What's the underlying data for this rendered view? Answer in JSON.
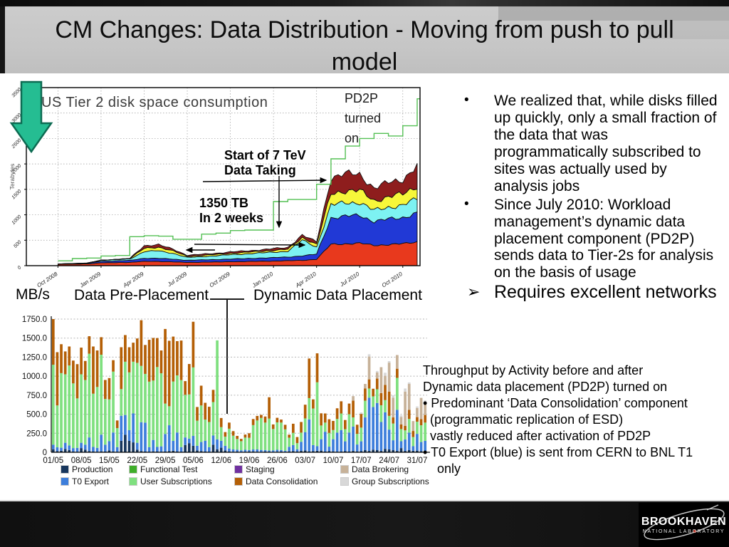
{
  "slide": {
    "title": "CM Changes: Data Distribution - Moving from push to pull model"
  },
  "bullets": [
    {
      "marker": "•",
      "text": "We realized that, while disks filled up quickly, only a small fraction of the data that was programmatically subscribed to sites was actually used by analysis jobs"
    },
    {
      "marker": "•",
      "text": "Since July 2010: Workload management’s dynamic data placement component (PD2P) sends data to Tier-2s for analysis on the basis of usage"
    },
    {
      "marker": "➢",
      "text": "Requires excellent networks"
    }
  ],
  "throughput_note": {
    "lines": [
      "Throughput by Activity before and after",
      "Dynamic data placement (PD2P) turned on",
      "• Predominant ‘Data Consolidation’ component",
      "  (programmatic replication of ESD)",
      "  vastly reduced after activation of PD2P",
      "• T0 Export (blue) is sent from CERN to BNL T1",
      "    only"
    ]
  },
  "logo": {
    "line1": "BROOKHAVEN",
    "line2": "NATIONAL LABORATORY"
  },
  "chart_data": [
    {
      "type": "area",
      "stacked": true,
      "title": "US Tier 2 disk space consumption",
      "ylabel": "Terabytes",
      "ylim": [
        0,
        3500
      ],
      "y_ticks": [
        0,
        500,
        1000,
        1500,
        2000,
        2500,
        3000,
        3500
      ],
      "grid": "dotted",
      "x": [
        "Oct 2008",
        "Nov 2008",
        "Dec 2008",
        "Jan 2009",
        "Feb 2009",
        "Mar 2009",
        "Apr 2009",
        "May 2009",
        "Jun 2009",
        "Jul 2009",
        "Aug 2009",
        "Sep 2009",
        "Oct 2009",
        "Nov 2009",
        "Dec 2009",
        "Jan 2010",
        "Feb 2010",
        "Mar 2010",
        "Apr 2010",
        "May 2010",
        "Jun 2010",
        "Jul 2010",
        "Aug 2010",
        "Sep 2010",
        "Oct 2010",
        "Nov 2010"
      ],
      "x_tick_labels": [
        "Oct 2008",
        "Jan 2009",
        "Apr 2009",
        "Jul 2009",
        "Oct 2009",
        "Jan 2010",
        "Apr 2010",
        "Jul 2010",
        "Oct 2010"
      ],
      "x_tick_indices": [
        0,
        3,
        6,
        9,
        12,
        15,
        18,
        21,
        24
      ],
      "series": [
        {
          "name": "band-red",
          "color": "#e8391d",
          "values": [
            25,
            30,
            35,
            55,
            60,
            65,
            85,
            85,
            75,
            65,
            68,
            72,
            78,
            82,
            88,
            92,
            98,
            105,
            125,
            420,
            430,
            440,
            400,
            415,
            430,
            470
          ]
        },
        {
          "name": "band-blue",
          "color": "#2139d6",
          "values": [
            5,
            7,
            9,
            30,
            34,
            38,
            60,
            60,
            52,
            42,
            45,
            48,
            52,
            56,
            62,
            66,
            72,
            88,
            100,
            520,
            540,
            550,
            470,
            500,
            515,
            570
          ]
        },
        {
          "name": "band-cyan",
          "color": "#7df2f2",
          "values": [
            4,
            5,
            7,
            22,
            26,
            30,
            130,
            150,
            115,
            55,
            65,
            75,
            85,
            92,
            98,
            108,
            112,
            310,
            140,
            250,
            265,
            255,
            215,
            235,
            245,
            275
          ]
        },
        {
          "name": "band-yellow",
          "color": "#f7f73a",
          "values": [
            0,
            0,
            0,
            0,
            0,
            6,
            65,
            70,
            48,
            22,
            24,
            26,
            28,
            30,
            33,
            36,
            40,
            52,
            55,
            225,
            240,
            230,
            195,
            205,
            215,
            255
          ]
        },
        {
          "name": "band-maroon",
          "color": "#8e1d1d",
          "values": [
            0,
            0,
            0,
            0,
            0,
            5,
            55,
            45,
            38,
            20,
            22,
            24,
            26,
            28,
            30,
            32,
            36,
            48,
            45,
            315,
            330,
            320,
            245,
            275,
            290,
            395
          ]
        }
      ],
      "capacity_line": {
        "name": "green-line",
        "color": "#54c054",
        "values": [
          95,
          140,
          150,
          190,
          200,
          570,
          590,
          580,
          520,
          520,
          620,
          640,
          690,
          700,
          700,
          1260,
          1300,
          1300,
          1600,
          2100,
          2350,
          2500,
          2600,
          2550,
          2750,
          3280
        ]
      },
      "annotations": {
        "pd2p": "PD2P\nturned\non",
        "tev_start": "Start of 7 TeV\nData Taking",
        "tb_2weeks": "1350 TB\nIn 2 weeks"
      }
    },
    {
      "type": "bar",
      "stacked": true,
      "ylabel": "MB/s",
      "ylim": [
        0,
        1750
      ],
      "y_ticks": {
        "values": [
          0,
          250,
          500,
          750,
          1000,
          1250,
          1500,
          1750
        ],
        "labels": [
          "0",
          "250.0",
          "500.0",
          "750.0",
          "1000.0",
          "1250.0",
          "1500.0",
          "1750.0"
        ]
      },
      "region_labels": {
        "left": "Data Pre-Placement",
        "right": "Dynamic Data Placement"
      },
      "n_bars": 94,
      "x_week_labels": [
        "01/05",
        "08/05",
        "15/05",
        "22/05",
        "29/05",
        "05/06",
        "12/06",
        "19/06",
        "26/06",
        "03/07",
        "10/07",
        "17/07",
        "24/07",
        "31/07"
      ],
      "stack_order": [
        "production",
        "t0_export",
        "user_subscriptions",
        "functional_test",
        "staging",
        "data_consolidation",
        "data_brokering",
        "group_subscriptions"
      ],
      "legend_order": [
        "production",
        "functional_test",
        "staging",
        "data_brokering",
        "t0_export",
        "user_subscriptions",
        "data_consolidation",
        "group_subscriptions"
      ],
      "series": [
        {
          "key": "production",
          "label": "Production",
          "color": "#17365d",
          "values": [
            40,
            15,
            20,
            45,
            30,
            10,
            8,
            55,
            35,
            15,
            10,
            8,
            12,
            10,
            25,
            10,
            8,
            150,
            230,
            150,
            130,
            35,
            15,
            10,
            8,
            12,
            10,
            8,
            10,
            15,
            20,
            10,
            8,
            95,
            120,
            85,
            25,
            15,
            10,
            8,
            100,
            40,
            60,
            25,
            10,
            8,
            10,
            6,
            8,
            10,
            12,
            8,
            6,
            10,
            8,
            6,
            8,
            10,
            6,
            12,
            15,
            10,
            18,
            25,
            12,
            15,
            20,
            22,
            10,
            14,
            12,
            8,
            10,
            14,
            10,
            18,
            12,
            14,
            28,
            18,
            35,
            28,
            18,
            45,
            38,
            28,
            18,
            55,
            18,
            28,
            20,
            22,
            15,
            10
          ]
        },
        {
          "key": "t0_export",
          "label": "T0 Export",
          "color": "#3d7edb",
          "values": [
            60,
            50,
            40,
            80,
            60,
            45,
            50,
            70,
            65,
            180,
            60,
            50,
            220,
            90,
            120,
            250,
            60,
            330,
            260,
            140,
            380,
            90,
            380,
            380,
            60,
            150,
            60,
            70,
            230,
            340,
            130,
            250,
            60,
            100,
            60,
            130,
            60,
            120,
            140,
            60,
            120,
            130,
            90,
            60,
            40,
            30,
            25,
            20,
            25,
            20,
            25,
            30,
            25,
            20,
            15,
            20,
            25,
            20,
            15,
            60,
            80,
            30,
            120,
            240,
            420,
            80,
            60,
            150,
            260,
            60,
            160,
            250,
            280,
            130,
            250,
            320,
            90,
            130,
            430,
            700,
            560,
            620,
            380,
            480,
            260,
            130,
            540,
            90,
            150,
            230,
            60,
            220,
            120,
            140
          ]
        },
        {
          "key": "functional_test",
          "label": "Functional Test",
          "color": "#3fae2a",
          "values": []
        },
        {
          "key": "user_subscriptions",
          "label": "User Subscriptions",
          "color": "#7fe07f",
          "values": [
            1050,
            550,
            980,
            900,
            1050,
            850,
            650,
            900,
            850,
            1100,
            700,
            800,
            1050,
            600,
            550,
            800,
            250,
            350,
            700,
            760,
            680,
            1050,
            740,
            640,
            860,
            780,
            1050,
            960,
            400,
            250,
            780,
            750,
            880,
            560,
            580,
            900,
            330,
            480,
            280,
            330,
            440,
            1300,
            180,
            120,
            260,
            180,
            140,
            120,
            160,
            160,
            320,
            380,
            420,
            360,
            420,
            280,
            360,
            360,
            280,
            120,
            160,
            80,
            120,
            180,
            280,
            480,
            840,
            180,
            120,
            180,
            120,
            180,
            220,
            160,
            240,
            120,
            140,
            180,
            220,
            120,
            140,
            180,
            220,
            160,
            180,
            220,
            420,
            160,
            120,
            180,
            120,
            160,
            220,
            240
          ]
        },
        {
          "key": "staging",
          "label": "Staging",
          "color": "#7030a0",
          "values": []
        },
        {
          "key": "data_consolidation",
          "label": "Data Consolidation",
          "color": "#b45f06",
          "values": [
            600,
            700,
            380,
            300,
            250,
            300,
            450,
            350,
            250,
            230,
            620,
            480,
            230,
            250,
            280,
            150,
            100,
            550,
            350,
            330,
            250,
            320,
            600,
            380,
            550,
            560,
            380,
            300,
            980,
            860,
            590,
            450,
            520,
            180,
            400,
            600,
            180,
            260,
            220,
            200,
            160,
            0,
            120,
            60,
            80,
            60,
            40,
            30,
            40,
            60,
            80,
            60,
            40,
            80,
            280,
            60,
            60,
            40,
            60,
            40,
            120,
            80,
            140,
            180,
            520,
            120,
            380,
            160,
            120,
            180,
            120,
            140,
            160,
            120,
            140,
            220,
            120,
            180,
            160,
            120,
            100,
            140,
            160,
            200,
            320,
            80,
            120,
            60,
            60,
            120,
            80,
            60,
            80,
            100
          ]
        },
        {
          "key": "data_brokering",
          "label": "Data Brokering",
          "color": "#c7b299",
          "values": [
            0,
            0,
            0,
            0,
            0,
            0,
            0,
            0,
            0,
            0,
            0,
            0,
            0,
            0,
            0,
            0,
            0,
            0,
            0,
            0,
            0,
            0,
            0,
            0,
            0,
            0,
            0,
            0,
            0,
            0,
            0,
            0,
            0,
            0,
            0,
            0,
            0,
            0,
            0,
            0,
            0,
            0,
            0,
            0,
            0,
            0,
            0,
            0,
            0,
            0,
            0,
            0,
            0,
            0,
            0,
            0,
            0,
            0,
            0,
            0,
            0,
            0,
            0,
            0,
            0,
            0,
            0,
            0,
            0,
            0,
            0,
            0,
            0,
            0,
            0,
            60,
            0,
            0,
            60,
            300,
            0,
            80,
            340,
            120,
            380,
            260,
            180,
            100,
            450,
            340,
            130,
            120,
            280,
            160
          ]
        },
        {
          "key": "group_subscriptions",
          "label": "Group Subscriptions",
          "color": "#d8d8d8",
          "values": [
            0,
            0,
            0,
            0,
            0,
            0,
            0,
            0,
            0,
            0,
            0,
            0,
            0,
            0,
            0,
            0,
            0,
            0,
            0,
            0,
            0,
            0,
            0,
            0,
            0,
            0,
            0,
            0,
            0,
            0,
            0,
            0,
            0,
            0,
            0,
            0,
            0,
            0,
            0,
            0,
            0,
            0,
            0,
            0,
            0,
            0,
            0,
            0,
            0,
            0,
            0,
            0,
            0,
            0,
            0,
            0,
            0,
            0,
            0,
            0,
            0,
            0,
            0,
            0,
            0,
            0,
            0,
            0,
            0,
            0,
            0,
            0,
            0,
            0,
            0,
            0,
            0,
            20,
            0,
            30,
            0,
            20,
            0,
            40,
            20,
            30,
            0,
            20,
            40,
            20,
            0,
            20,
            0,
            30
          ]
        }
      ]
    }
  ]
}
